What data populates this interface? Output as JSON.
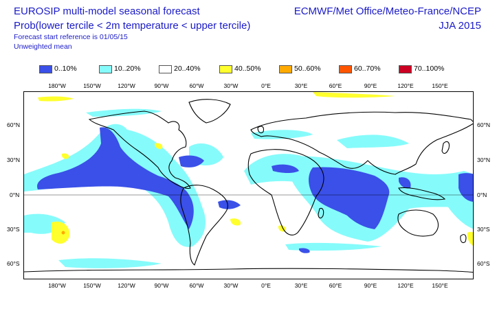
{
  "header": {
    "title": "EUROSIP multi-model seasonal forecast",
    "subtitle": "Prob(lower tercile < 2m temperature < upper tercile)",
    "reference": "Forecast start reference is 01/05/15",
    "mean_type": "Unweighted mean",
    "provider": "ECMWF/Met Office/Meteo-France/NCEP",
    "season": "JJA 2015"
  },
  "legend": [
    {
      "label": "0..10%",
      "color": "#3a50e8"
    },
    {
      "label": "10..20%",
      "color": "#86fbfb"
    },
    {
      "label": "20..40%",
      "color": "#ffffff"
    },
    {
      "label": "40..50%",
      "color": "#ffff2e"
    },
    {
      "label": "50..60%",
      "color": "#ffaa00"
    },
    {
      "label": "60..70%",
      "color": "#ff5500"
    },
    {
      "label": "70..100%",
      "color": "#cc0022"
    }
  ],
  "axes": {
    "lon_labels": [
      "180°W",
      "150°W",
      "120°W",
      "90°W",
      "60°W",
      "30°W",
      "0°E",
      "30°E",
      "60°E",
      "90°E",
      "120°E",
      "150°E"
    ],
    "lat_labels_left": [
      "60°N",
      "30°N",
      "0°N",
      "30°S",
      "60°S"
    ],
    "lat_labels_right": [
      "60°N",
      "30°N",
      "0°N",
      "30°S",
      "60°S"
    ]
  }
}
